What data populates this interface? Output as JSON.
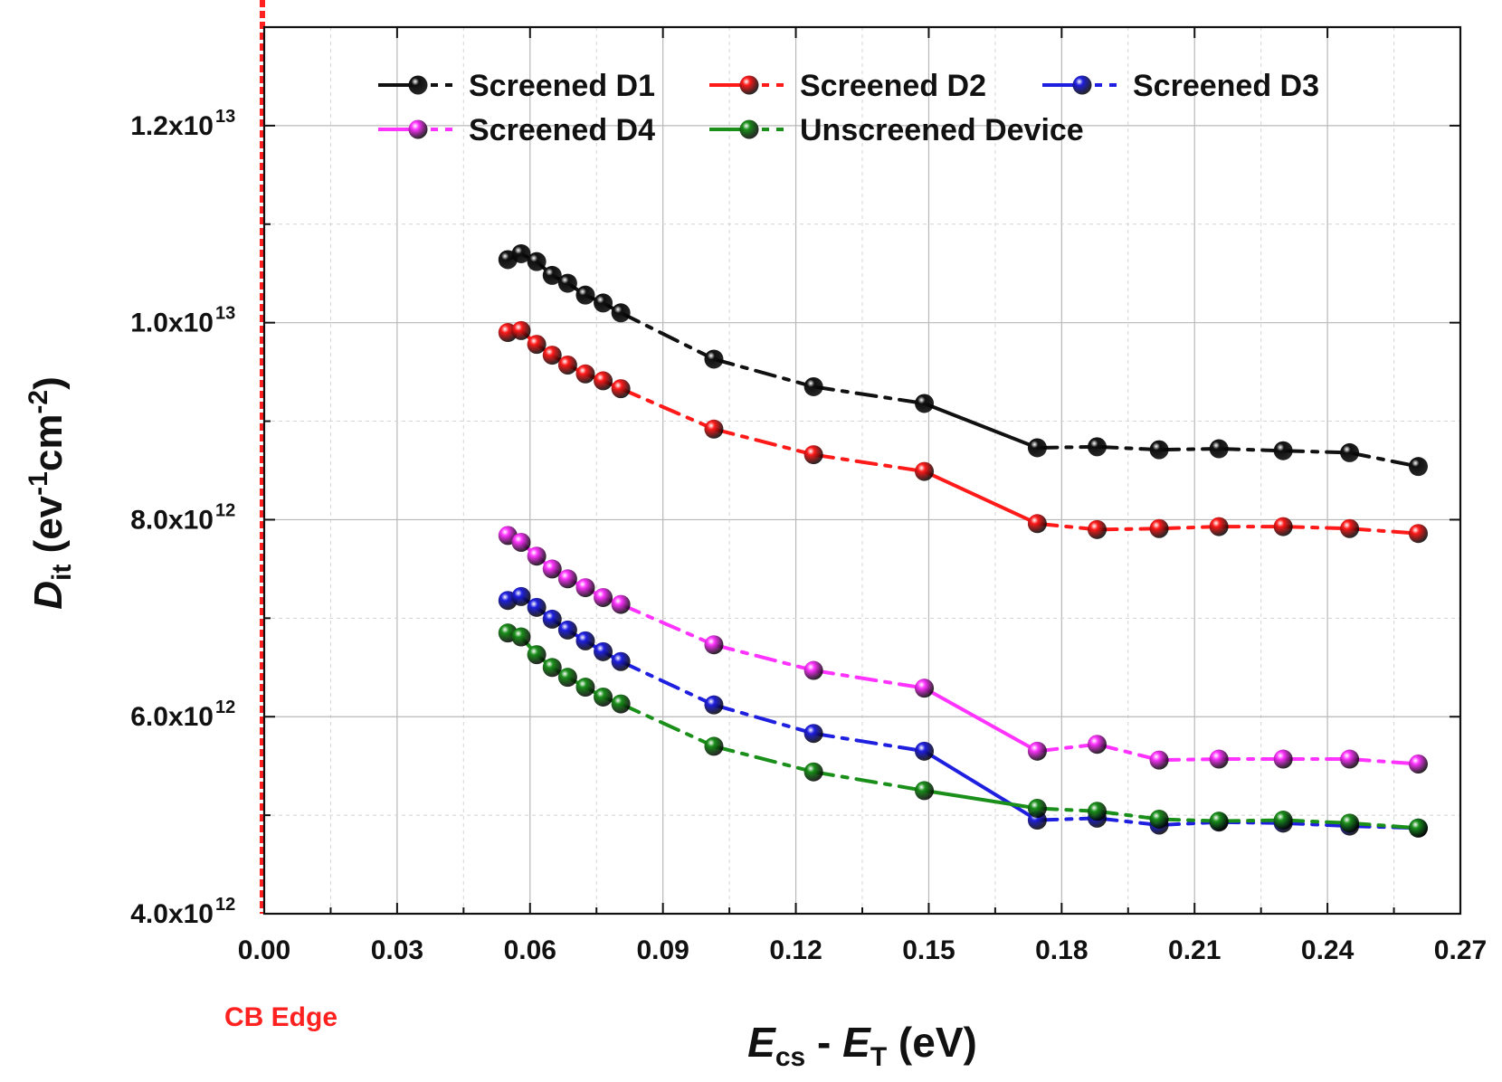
{
  "chart_data": {
    "type": "line",
    "title": "",
    "xlabel": {
      "main": "E",
      "sub1": "cs",
      "mid": " - ",
      "main2": "E",
      "sub2": "T",
      "unit": " (eV)"
    },
    "ylabel": {
      "main": "D",
      "sub": "it",
      "unit_open": " (ev",
      "exp1": "-1",
      "cm": "cm",
      "exp2": "-2",
      "unit_close": ")"
    },
    "xlim": [
      0,
      0.27
    ],
    "ylim": [
      4000000000000.0,
      13000000000000.0
    ],
    "x_ticks": [
      {
        "value": 0.0,
        "label": "0.00"
      },
      {
        "value": 0.03,
        "label": "0.03"
      },
      {
        "value": 0.06,
        "label": "0.06"
      },
      {
        "value": 0.09,
        "label": "0.09"
      },
      {
        "value": 0.12,
        "label": "0.12"
      },
      {
        "value": 0.15,
        "label": "0.15"
      },
      {
        "value": 0.18,
        "label": "0.18"
      },
      {
        "value": 0.21,
        "label": "0.21"
      },
      {
        "value": 0.24,
        "label": "0.24"
      },
      {
        "value": 0.27,
        "label": "0.27"
      }
    ],
    "y_ticks": [
      {
        "value": 4000000000000.0,
        "mant": "4.0x10",
        "exp": "12"
      },
      {
        "value": 6000000000000.0,
        "mant": "6.0x10",
        "exp": "12"
      },
      {
        "value": 8000000000000.0,
        "mant": "8.0x10",
        "exp": "12"
      },
      {
        "value": 10000000000000.0,
        "mant": "1.0x10",
        "exp": "13"
      },
      {
        "value": 12000000000000.0,
        "mant": "1.2x10",
        "exp": "13"
      }
    ],
    "grid": true,
    "legend_position": "top",
    "annotations": [
      {
        "text": "CB Edge",
        "x": 0.0,
        "color": "#ff2020"
      }
    ],
    "x": [
      0.055,
      0.058,
      0.0615,
      0.065,
      0.0685,
      0.0725,
      0.0765,
      0.0805,
      0.1015,
      0.124,
      0.149,
      0.1745,
      0.188,
      0.202,
      0.2155,
      0.23,
      0.245,
      0.2605
    ],
    "series": [
      {
        "name": "Screened D1",
        "color": "#111111",
        "values": [
          10640000000000.0,
          10700000000000.0,
          10620000000000.0,
          10480000000000.0,
          10400000000000.0,
          10280000000000.0,
          10200000000000.0,
          10100000000000.0,
          9630000000000.0,
          9350000000000.0,
          9180000000000.0,
          8730000000000.0,
          8740000000000.0,
          8710000000000.0,
          8720000000000.0,
          8700000000000.0,
          8680000000000.0,
          8540000000000.0
        ]
      },
      {
        "name": "Screened D2",
        "color": "#ff1a1a",
        "values": [
          9900000000000.0,
          9920000000000.0,
          9780000000000.0,
          9670000000000.0,
          9570000000000.0,
          9480000000000.0,
          9410000000000.0,
          9330000000000.0,
          8920000000000.0,
          8660000000000.0,
          8490000000000.0,
          7960000000000.0,
          7900000000000.0,
          7910000000000.0,
          7930000000000.0,
          7930000000000.0,
          7910000000000.0,
          7860000000000.0
        ]
      },
      {
        "name": "Screened D3",
        "color": "#1f1fe0",
        "values": [
          7180000000000.0,
          7220000000000.0,
          7110000000000.0,
          6990000000000.0,
          6880000000000.0,
          6770000000000.0,
          6660000000000.0,
          6560000000000.0,
          6120000000000.0,
          5830000000000.0,
          5650000000000.0,
          4950000000000.0,
          4970000000000.0,
          4900000000000.0,
          4930000000000.0,
          4920000000000.0,
          4890000000000.0,
          4870000000000.0
        ]
      },
      {
        "name": "Screened D4",
        "color": "#ff33ff",
        "values": [
          7840000000000.0,
          7770000000000.0,
          7630000000000.0,
          7500000000000.0,
          7400000000000.0,
          7310000000000.0,
          7210000000000.0,
          7140000000000.0,
          6730000000000.0,
          6470000000000.0,
          6290000000000.0,
          5650000000000.0,
          5720000000000.0,
          5560000000000.0,
          5570000000000.0,
          5570000000000.0,
          5570000000000.0,
          5520000000000.0
        ]
      },
      {
        "name": "Unscreened Device",
        "color": "#1a8f1a",
        "values": [
          6850000000000.0,
          6810000000000.0,
          6630000000000.0,
          6500000000000.0,
          6400000000000.0,
          6300000000000.0,
          6200000000000.0,
          6130000000000.0,
          5700000000000.0,
          5440000000000.0,
          5250000000000.0,
          5070000000000.0,
          5040000000000.0,
          4960000000000.0,
          4940000000000.0,
          4950000000000.0,
          4920000000000.0,
          4870000000000.0
        ]
      }
    ]
  }
}
